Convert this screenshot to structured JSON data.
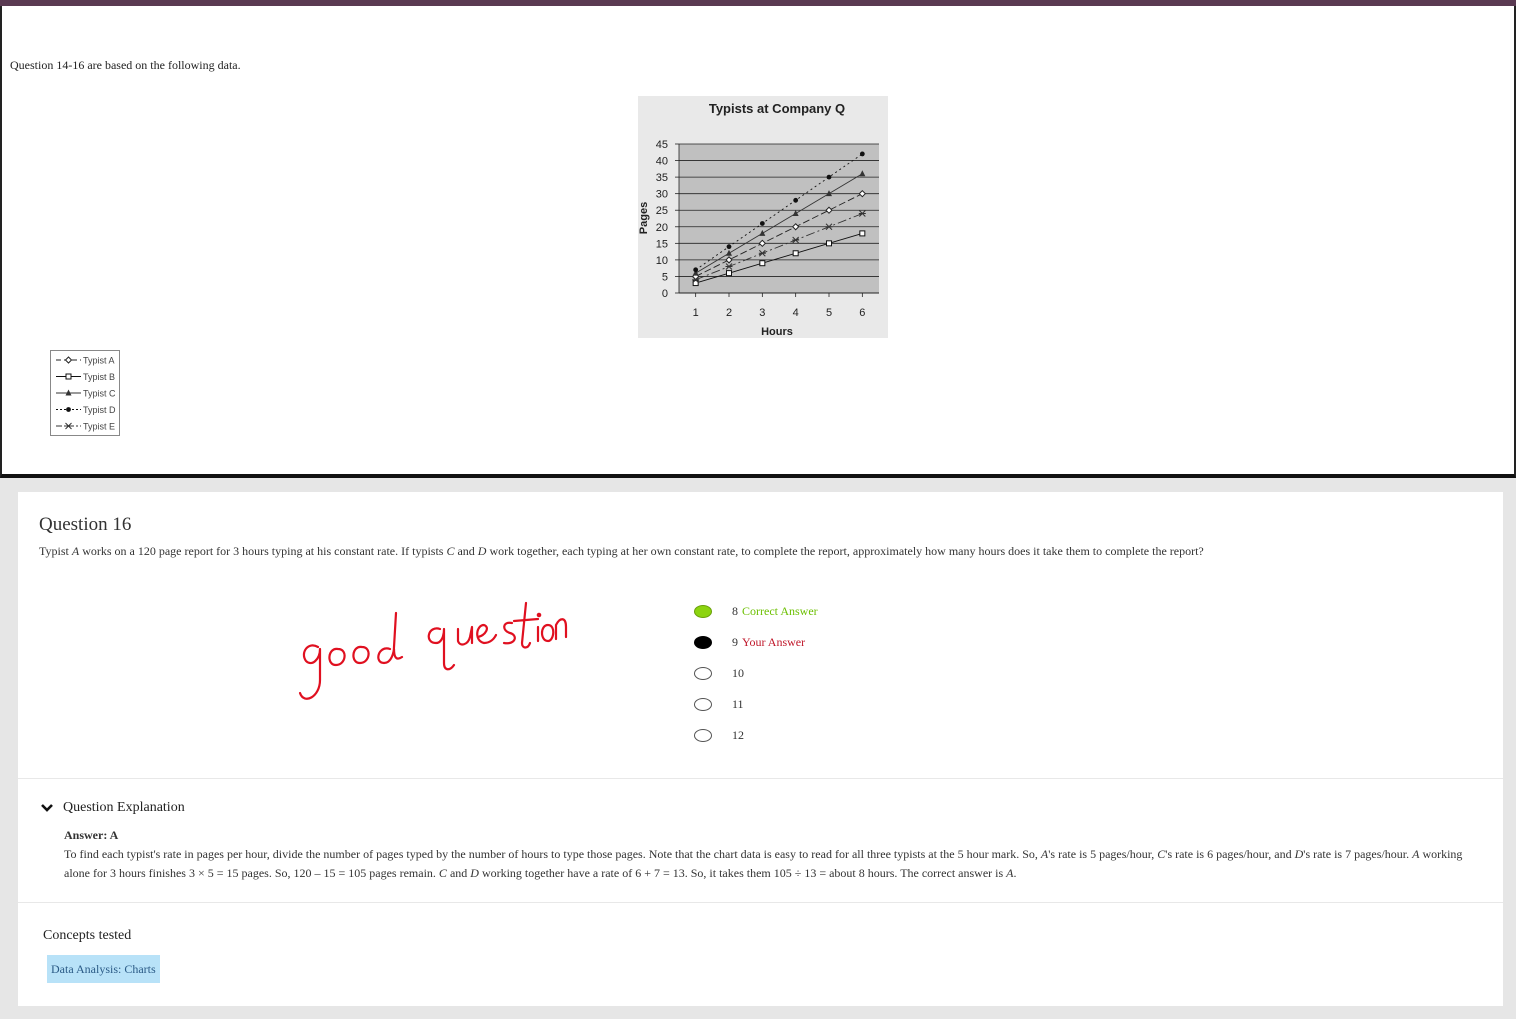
{
  "intro_text": "Question 14-16 are based on the following data.",
  "chart_data": {
    "type": "line",
    "title": "Typists at Company Q",
    "xlabel": "Hours",
    "ylabel": "Pages",
    "x": [
      1,
      2,
      3,
      4,
      5,
      6
    ],
    "xlim": [
      0.5,
      6.5
    ],
    "ylim": [
      0,
      45
    ],
    "yticks": [
      0,
      5,
      10,
      15,
      20,
      25,
      30,
      35,
      40,
      45
    ],
    "grid": true,
    "legend_position": "separate-left",
    "series": [
      {
        "name": "Typist A",
        "values": [
          5,
          10,
          15,
          20,
          25,
          30
        ],
        "color": "#222222",
        "marker": "diamond-open",
        "dash": "7 3"
      },
      {
        "name": "Typist B",
        "values": [
          3,
          6,
          9,
          12,
          15,
          18
        ],
        "color": "#111111",
        "marker": "square-open",
        "dash": ""
      },
      {
        "name": "Typist C",
        "values": [
          6,
          12,
          18,
          24,
          30,
          36
        ],
        "color": "#333333",
        "marker": "triangle",
        "dash": ""
      },
      {
        "name": "Typist D",
        "values": [
          7,
          14,
          21,
          28,
          35,
          42
        ],
        "color": "#111111",
        "marker": "circle",
        "dash": "2 3"
      },
      {
        "name": "Typist E",
        "values": [
          4,
          8,
          12,
          16,
          20,
          24
        ],
        "color": "#333333",
        "marker": "star",
        "dash": "9 3 2 3"
      }
    ]
  },
  "question": {
    "title": "Question 16",
    "text_parts": [
      "Typist ",
      "A",
      " works on a 120 page report for 3 hours typing at his constant rate. If typists ",
      "C",
      " and ",
      "D",
      " work together, each typing at her own constant rate, to complete the report, approximately how many hours does it take them to complete the report?"
    ],
    "options": [
      {
        "label": "8",
        "tag": "Correct Answer",
        "state": "correct"
      },
      {
        "label": "9",
        "tag": "Your Answer",
        "state": "yours"
      },
      {
        "label": "10",
        "tag": "",
        "state": "none"
      },
      {
        "label": "11",
        "tag": "",
        "state": "none"
      },
      {
        "label": "12",
        "tag": "",
        "state": "none"
      }
    ],
    "handwritten_note": "good question",
    "handwriting_color": "#e01020"
  },
  "explanation": {
    "header": "Question Explanation",
    "answer_line": "Answer: A",
    "body_parts": [
      "To find each typist's rate in pages per hour, divide the number of pages typed by the number of hours to type those pages. Note that the chart data is easy to read for all three typists at the 5 hour mark. So, ",
      "A",
      "'s rate is 5 pages/hour, ",
      "C",
      "'s rate is 6 pages/hour, and ",
      "D",
      "'s rate is 7 pages/hour. ",
      "A",
      " working alone for 3 hours finishes 3 × 5 = 15 pages. So, 120 – 15 = 105 pages remain. ",
      "C",
      " and ",
      "D",
      " working together have a rate of 6 + 7 = 13. So, it takes them 105 ÷ 13 = about 8 hours. The correct answer is ",
      "A",
      "."
    ]
  },
  "concepts": {
    "title": "Concepts tested",
    "tag": "Data Analysis: Charts"
  },
  "colors": {
    "correct": "#6bbf00",
    "yours": "#c0182b",
    "tag_bg": "#b8e2f8"
  }
}
